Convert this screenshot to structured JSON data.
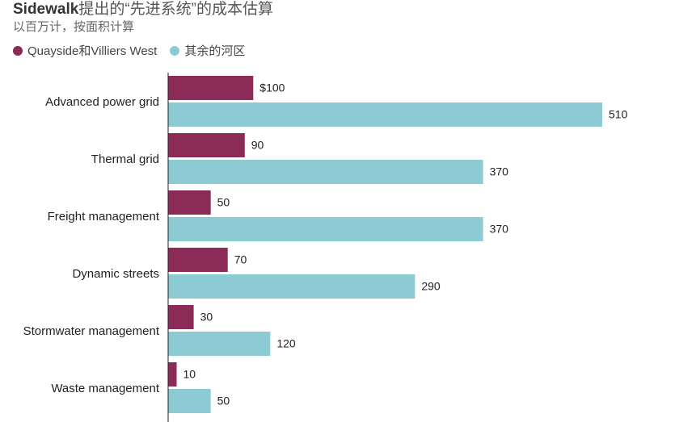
{
  "header": {
    "title_bold": "Sidewalk",
    "title_rest": "提出的“先进系统”的成本估算",
    "subtitle": "以百万计，按面积计算"
  },
  "legend": [
    {
      "label": "Quayside和Villiers West",
      "color": "#8a2c57"
    },
    {
      "label": "其余的河区",
      "color": "#8ccbd4"
    }
  ],
  "chart_data": {
    "type": "bar",
    "orientation": "horizontal",
    "categories": [
      "Advanced power grid",
      "Thermal grid",
      "Freight management",
      "Dynamic streets",
      "Stormwater management",
      "Waste management"
    ],
    "series": [
      {
        "name": "Quayside和Villiers West",
        "color": "#8a2c57",
        "values": [
          100,
          90,
          50,
          70,
          30,
          10
        ],
        "labels": [
          "$100",
          "90",
          "50",
          "70",
          "30",
          "10"
        ]
      },
      {
        "name": "其余的河区",
        "color": "#8ccbd4",
        "values": [
          510,
          370,
          370,
          290,
          120,
          50
        ],
        "labels": [
          "510",
          "370",
          "370",
          "290",
          "120",
          "50"
        ]
      }
    ],
    "title": "Sidewalk提出的“先进系统”的成本估算",
    "subtitle": "以百万计，按面积计算",
    "xlim": [
      0,
      510
    ],
    "grid": false,
    "legend_position": "top-left"
  }
}
